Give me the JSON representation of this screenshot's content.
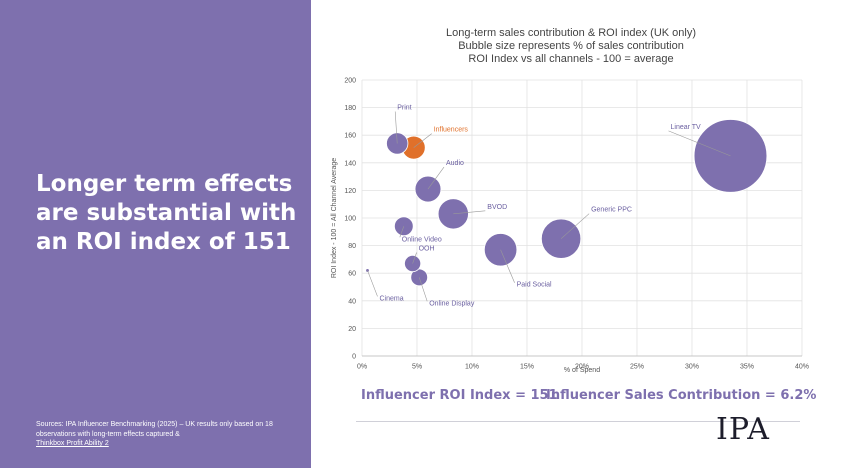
{
  "headline": "Longer term effects are substantial with an ROI index of 151",
  "source": {
    "text": "Sources: IPA Influencer Benchmarking (2025) – UK results only based on 18 observations with long-term effects captured &",
    "link": "Thinkbox Profit Ability 2"
  },
  "stats": {
    "roi": "Influencer ROI Index = 151",
    "sales": "Influencer Sales Contribution = 6.2%"
  },
  "logo": "IPA",
  "colors": {
    "panel": "#7e70ae",
    "bubble": "#7e70ae",
    "highlight": "#e0702a"
  },
  "chart_data": {
    "type": "scatter",
    "title_lines": [
      "Long-term sales contribution & ROI index (UK only)",
      "Bubble size represents % of sales contribution",
      "ROI Index vs all channels - 100 = average"
    ],
    "xlabel": "% of Spend",
    "ylabel": "ROI Index - 100 = All Channel Average",
    "xlim": [
      0,
      40
    ],
    "ylim": [
      0,
      200
    ],
    "xticks": [
      "0%",
      "5%",
      "10%",
      "15%",
      "20%",
      "25%",
      "30%",
      "35%",
      "40%"
    ],
    "yticks": [
      "0",
      "20",
      "40",
      "60",
      "80",
      "100",
      "120",
      "140",
      "160",
      "180",
      "200"
    ],
    "grid": true,
    "points": [
      {
        "label": "Print",
        "x": 3.2,
        "y": 154,
        "size": 1.3,
        "highlight": false
      },
      {
        "label": "Influencers",
        "x": 4.7,
        "y": 151,
        "size": 1.5,
        "highlight": true
      },
      {
        "label": "Audio",
        "x": 6.0,
        "y": 121,
        "size": 1.9,
        "highlight": false
      },
      {
        "label": "BVOD",
        "x": 8.3,
        "y": 103,
        "size": 2.6,
        "highlight": false
      },
      {
        "label": "Online Video",
        "x": 3.8,
        "y": 94,
        "size": 1.0,
        "highlight": false
      },
      {
        "label": "Generic PPC",
        "x": 18.1,
        "y": 85,
        "size": 4.4,
        "highlight": false
      },
      {
        "label": "Paid Social",
        "x": 12.6,
        "y": 77,
        "size": 3.0,
        "highlight": false
      },
      {
        "label": "OOH",
        "x": 4.6,
        "y": 67,
        "size": 0.75,
        "highlight": false
      },
      {
        "label": "Online Display",
        "x": 5.2,
        "y": 57,
        "size": 0.8,
        "highlight": false
      },
      {
        "label": "Cinema",
        "x": 0.5,
        "y": 62,
        "size": 0.03,
        "highlight": false
      },
      {
        "label": "Linear TV",
        "x": 33.5,
        "y": 145,
        "size": 15.0,
        "highlight": false
      }
    ]
  }
}
